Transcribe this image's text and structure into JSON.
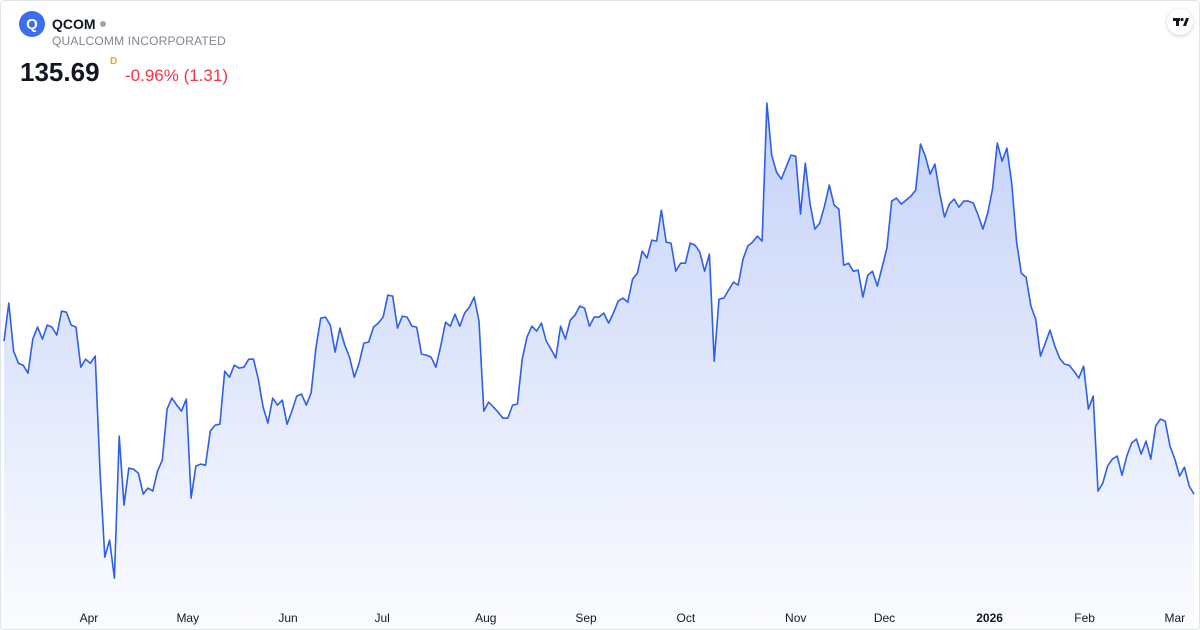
{
  "header": {
    "symbol": "QCOM",
    "name": "QUALCOMM INCORPORATED",
    "price": "135.69",
    "interval": "D",
    "change": "-0.96% (1.31)"
  },
  "chart_data": {
    "type": "line",
    "xlim": [
      0,
      248
    ],
    "xticks": [
      {
        "value": 17.7,
        "label": "Apr"
      },
      {
        "value": 38.3,
        "label": "May"
      },
      {
        "value": 59.2,
        "label": "Jun"
      },
      {
        "value": 78.8,
        "label": "Jul"
      },
      {
        "value": 100.4,
        "label": "Aug"
      },
      {
        "value": 121.3,
        "label": "Sep"
      },
      {
        "value": 142.1,
        "label": "Oct"
      },
      {
        "value": 165,
        "label": "Nov"
      },
      {
        "value": 183.5,
        "label": "Dec"
      },
      {
        "value": 205.4,
        "label": "2026"
      },
      {
        "value": 225.2,
        "label": "Feb"
      },
      {
        "value": 244,
        "label": "Mar"
      }
    ],
    "ylim": [
      117,
      206.2
    ],
    "series": [
      {
        "color": "#2f5fe8",
        "values": [
          162.45,
          169.1,
          160.7,
          158.6,
          158.25,
          156.85,
          162.8,
          164.9,
          162.8,
          165.25,
          164.9,
          163.5,
          167.7,
          167.52,
          165.25,
          164.9,
          157.9,
          159.3,
          158.6,
          159.83,
          139.71,
          124.67,
          127.65,
          121.0,
          145.84,
          133.77,
          140.24,
          140.06,
          139.36,
          135.69,
          136.74,
          136.22,
          139.71,
          141.64,
          150.56,
          152.48,
          151.26,
          150.21,
          152.31,
          134.99,
          140.59,
          140.94,
          140.76,
          146.71,
          147.76,
          147.93,
          157.2,
          156.15,
          158.25,
          157.73,
          157.9,
          159.3,
          159.3,
          155.81,
          150.91,
          148.11,
          152.48,
          151.26,
          152.13,
          147.93,
          150.21,
          152.83,
          153.18,
          151.26,
          153.36,
          161.23,
          166.47,
          166.65,
          165.25,
          160.53,
          164.73,
          161.75,
          159.65,
          156.15,
          158.6,
          162.1,
          162.28,
          164.9,
          165.6,
          166.65,
          170.5,
          170.32,
          164.73,
          166.82,
          166.65,
          165.07,
          164.9,
          160.18,
          160.0,
          159.65,
          157.9,
          161.58,
          165.77,
          165.07,
          167.17,
          165.07,
          167.35,
          168.4,
          170.15,
          165.95,
          150.21,
          151.78,
          150.91,
          150.03,
          148.98,
          148.98,
          151.26,
          151.43,
          159.3,
          163.15,
          165.07,
          164.2,
          165.6,
          162.45,
          161.05,
          159.48,
          165.07,
          162.8,
          166.12,
          167.0,
          168.57,
          168.22,
          165.07,
          166.65,
          166.65,
          167.35,
          165.6,
          167.35,
          169.45,
          169.97,
          169.27,
          173.3,
          174.34,
          178.19,
          176.97,
          180.12,
          179.94,
          185.36,
          179.77,
          179.59,
          174.69,
          176.09,
          176.09,
          179.59,
          179.24,
          178.02,
          174.69,
          177.67,
          158.95,
          169.8,
          169.97,
          171.37,
          172.77,
          172.25,
          176.79,
          179.07,
          179.77,
          180.82,
          179.94,
          204.08,
          194.98,
          192.01,
          190.79,
          192.88,
          194.98,
          194.81,
          184.66,
          193.58,
          186.41,
          182.04,
          183.09,
          186.06,
          189.74,
          186.24,
          185.54,
          175.74,
          176.09,
          174.69,
          174.87,
          170.15,
          173.99,
          174.69,
          172.07,
          175.39,
          178.72,
          186.94,
          187.46,
          186.41,
          187.11,
          187.81,
          188.86,
          196.91,
          194.81,
          191.66,
          193.41,
          188.34,
          184.14,
          186.41,
          187.29,
          185.89,
          186.94,
          186.94,
          186.59,
          184.49,
          182.04,
          184.84,
          189.04,
          197.08,
          193.93,
          196.21,
          190.09,
          179.94,
          174.34,
          173.64,
          168.57,
          166.3,
          159.83,
          162.1,
          164.38,
          161.58,
          159.48,
          158.43,
          158.25,
          157.2,
          155.98,
          158.08,
          150.56,
          152.83,
          136.22,
          137.62,
          140.59,
          141.81,
          142.34,
          139.01,
          142.34,
          144.61,
          145.31,
          142.69,
          144.96,
          141.81,
          147.58,
          148.81,
          148.46,
          144.09,
          141.81,
          138.84,
          140.41,
          137.09,
          135.69
        ]
      }
    ]
  }
}
